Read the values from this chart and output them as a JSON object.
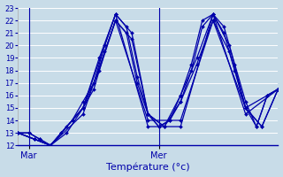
{
  "xlabel": "Température (°c)",
  "background_color": "#c8dce8",
  "grid_color": "#ffffff",
  "line_color": "#0000aa",
  "ylim": [
    12,
    23
  ],
  "xlim": [
    0,
    48
  ],
  "yticks": [
    12,
    13,
    14,
    15,
    16,
    17,
    18,
    19,
    20,
    21,
    22,
    23
  ],
  "xtick_labels": [
    "Mar",
    "Mer"
  ],
  "xtick_positions": [
    2,
    26
  ],
  "series": [
    {
      "x": [
        0,
        6,
        12,
        18,
        24,
        30,
        36,
        42,
        48
      ],
      "y": [
        13,
        12,
        15,
        22.5,
        13.5,
        13.5,
        22.5,
        14.5,
        16.5
      ]
    },
    {
      "x": [
        0,
        6,
        12,
        18,
        24,
        30,
        36,
        42,
        48
      ],
      "y": [
        13,
        12,
        14.5,
        22,
        14,
        14,
        22,
        15,
        16.5
      ]
    },
    {
      "x": [
        0,
        3,
        6,
        9,
        12,
        15,
        18,
        21,
        24,
        27,
        30,
        33,
        36,
        39,
        42,
        45,
        48
      ],
      "y": [
        13,
        12.5,
        12,
        13,
        15,
        18,
        22,
        20.5,
        14.5,
        13.5,
        15.5,
        18.5,
        22,
        19.5,
        15,
        13.5,
        16.5
      ]
    },
    {
      "x": [
        0,
        3,
        6,
        9,
        12,
        15,
        18,
        21,
        24,
        27,
        30,
        33,
        36,
        39,
        42,
        45,
        48
      ],
      "y": [
        13,
        12.5,
        12,
        13.5,
        15,
        19,
        22.5,
        21,
        14.5,
        13.5,
        16,
        19,
        22.5,
        20,
        15,
        13.5,
        16.5
      ]
    },
    {
      "x": [
        0,
        2,
        4,
        6,
        8,
        10,
        12,
        14,
        16,
        18,
        20,
        22,
        24,
        26,
        28,
        30,
        32,
        34,
        36,
        38,
        40,
        42,
        44,
        46,
        48
      ],
      "y": [
        13,
        13,
        12.5,
        12,
        13,
        14,
        15,
        16.5,
        19.5,
        22,
        21,
        17,
        14.5,
        13.5,
        14,
        15.5,
        18,
        21.5,
        22.5,
        21,
        18,
        15,
        13.5,
        16,
        16.5
      ]
    },
    {
      "x": [
        0,
        2,
        4,
        6,
        8,
        10,
        12,
        14,
        16,
        18,
        20,
        22,
        24,
        26,
        28,
        30,
        32,
        34,
        36,
        38,
        40,
        42,
        44,
        46,
        48
      ],
      "y": [
        13,
        13,
        12.5,
        12,
        13,
        14,
        15.5,
        17,
        20,
        22.5,
        21.5,
        17.5,
        14.5,
        13.5,
        14,
        16,
        18.5,
        22,
        22.5,
        21.5,
        18.5,
        15.5,
        13.5,
        16,
        16.5
      ]
    }
  ]
}
